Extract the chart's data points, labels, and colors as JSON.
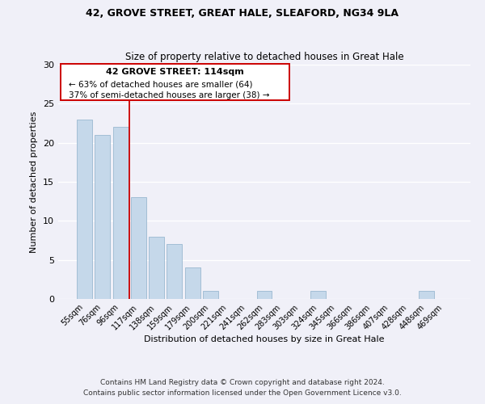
{
  "title1": "42, GROVE STREET, GREAT HALE, SLEAFORD, NG34 9LA",
  "title2": "Size of property relative to detached houses in Great Hale",
  "xlabel": "Distribution of detached houses by size in Great Hale",
  "ylabel": "Number of detached properties",
  "bar_labels": [
    "55sqm",
    "76sqm",
    "96sqm",
    "117sqm",
    "138sqm",
    "159sqm",
    "179sqm",
    "200sqm",
    "221sqm",
    "241sqm",
    "262sqm",
    "283sqm",
    "303sqm",
    "324sqm",
    "345sqm",
    "366sqm",
    "386sqm",
    "407sqm",
    "428sqm",
    "448sqm",
    "469sqm"
  ],
  "bar_values": [
    23,
    21,
    22,
    13,
    8,
    7,
    4,
    1,
    0,
    0,
    1,
    0,
    0,
    1,
    0,
    0,
    0,
    0,
    0,
    1,
    0
  ],
  "bar_color": "#c5d8ea",
  "bar_edge_color": "#9ab8d0",
  "ref_line_color": "#cc0000",
  "ylim": [
    0,
    30
  ],
  "yticks": [
    0,
    5,
    10,
    15,
    20,
    25,
    30
  ],
  "annotation_title": "42 GROVE STREET: 114sqm",
  "annotation_line1": "← 63% of detached houses are smaller (64)",
  "annotation_line2": "37% of semi-detached houses are larger (38) →",
  "annotation_box_color": "#ffffff",
  "annotation_box_edge": "#cc0000",
  "footer1": "Contains HM Land Registry data © Crown copyright and database right 2024.",
  "footer2": "Contains public sector information licensed under the Open Government Licence v3.0.",
  "background_color": "#f0f0f8",
  "grid_color": "#ffffff"
}
